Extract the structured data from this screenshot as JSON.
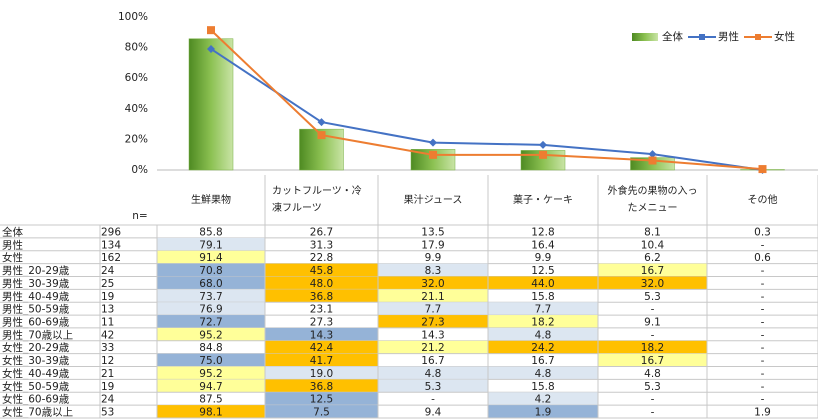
{
  "chart_data": {
    "type": "bar",
    "categories": [
      "生鮮果物",
      "カットフルーツ・冷凍フルーツ",
      "果汁ジュース",
      "菓子・ケーキ",
      "外食先の果物の入ったメニュー",
      "その他"
    ],
    "series": [
      {
        "name": "全体",
        "type": "bar",
        "color": "#77b043",
        "values": [
          85.8,
          26.7,
          13.5,
          12.8,
          8.1,
          0.3
        ]
      },
      {
        "name": "男性",
        "type": "line",
        "color": "#4472c4",
        "values": [
          79.1,
          31.3,
          17.9,
          16.4,
          10.4,
          0
        ]
      },
      {
        "name": "女性",
        "type": "line",
        "color": "#ed7d31",
        "values": [
          91.4,
          22.8,
          9.9,
          9.9,
          6.2,
          0.6
        ]
      }
    ],
    "ylim": [
      0,
      100
    ],
    "yticks": [
      {
        "value": 0,
        "label": "0%"
      },
      {
        "value": 20,
        "label": "20%"
      },
      {
        "value": 40,
        "label": "40%"
      },
      {
        "value": 60,
        "label": "60%"
      },
      {
        "value": 80,
        "label": "80%"
      },
      {
        "value": 100,
        "label": "100%"
      }
    ],
    "grid": false,
    "legend": "top-right"
  },
  "table": {
    "n_header": "n=",
    "rows": [
      {
        "label": "全体",
        "n": "296",
        "cells": [
          "85.8",
          "26.7",
          "13.5",
          "12.8",
          "8.1",
          "0.3"
        ],
        "colors": [
          null,
          null,
          null,
          null,
          null,
          null
        ]
      },
      {
        "label": "男性",
        "n": "134",
        "cells": [
          "79.1",
          "31.3",
          "17.9",
          "16.4",
          "10.4",
          "-"
        ],
        "colors": [
          "#dce6f1",
          null,
          null,
          null,
          null,
          null
        ]
      },
      {
        "label": "女性",
        "n": "162",
        "cells": [
          "91.4",
          "22.8",
          "9.9",
          "9.9",
          "6.2",
          "0.6"
        ],
        "colors": [
          "#ffff99",
          null,
          null,
          null,
          null,
          null
        ]
      },
      {
        "label": "男性_20-29歳",
        "n": "24",
        "cells": [
          "70.8",
          "45.8",
          "8.3",
          "12.5",
          "16.7",
          "-"
        ],
        "colors": [
          "#95b3d7",
          "#ffc000",
          "#dce6f1",
          null,
          "#ffff99",
          null
        ]
      },
      {
        "label": "男性_30-39歳",
        "n": "25",
        "cells": [
          "68.0",
          "48.0",
          "32.0",
          "44.0",
          "32.0",
          "-"
        ],
        "colors": [
          "#95b3d7",
          "#ffc000",
          "#ffc000",
          "#ffc000",
          "#ffc000",
          null
        ]
      },
      {
        "label": "男性_40-49歳",
        "n": "19",
        "cells": [
          "73.7",
          "36.8",
          "21.1",
          "15.8",
          "5.3",
          "-"
        ],
        "colors": [
          "#dce6f1",
          "#ffc000",
          "#ffff99",
          null,
          null,
          null
        ]
      },
      {
        "label": "男性_50-59歳",
        "n": "13",
        "cells": [
          "76.9",
          "23.1",
          "7.7",
          "7.7",
          "-",
          "-"
        ],
        "colors": [
          "#dce6f1",
          null,
          "#dce6f1",
          "#dce6f1",
          null,
          null
        ]
      },
      {
        "label": "男性_60-69歳",
        "n": "11",
        "cells": [
          "72.7",
          "27.3",
          "27.3",
          "18.2",
          "9.1",
          "-"
        ],
        "colors": [
          "#95b3d7",
          null,
          "#ffc000",
          "#ffff99",
          null,
          null
        ]
      },
      {
        "label": "男性_70歳以上",
        "n": "42",
        "cells": [
          "95.2",
          "14.3",
          "14.3",
          "4.8",
          "-",
          "-"
        ],
        "colors": [
          "#ffff99",
          "#95b3d7",
          null,
          "#dce6f1",
          null,
          null
        ]
      },
      {
        "label": "女性_20-29歳",
        "n": "33",
        "cells": [
          "84.8",
          "42.4",
          "21.2",
          "24.2",
          "18.2",
          "-"
        ],
        "colors": [
          null,
          "#ffc000",
          "#ffff99",
          "#ffc000",
          "#ffc000",
          null
        ]
      },
      {
        "label": "女性_30-39歳",
        "n": "12",
        "cells": [
          "75.0",
          "41.7",
          "16.7",
          "16.7",
          "16.7",
          "-"
        ],
        "colors": [
          "#95b3d7",
          "#ffc000",
          null,
          null,
          "#ffff99",
          null
        ]
      },
      {
        "label": "女性_40-49歳",
        "n": "21",
        "cells": [
          "95.2",
          "19.0",
          "4.8",
          "4.8",
          "4.8",
          "-"
        ],
        "colors": [
          "#ffff99",
          "#dce6f1",
          "#dce6f1",
          "#dce6f1",
          null,
          null
        ]
      },
      {
        "label": "女性_50-59歳",
        "n": "19",
        "cells": [
          "94.7",
          "36.8",
          "5.3",
          "15.8",
          "5.3",
          "-"
        ],
        "colors": [
          "#ffff99",
          "#ffc000",
          "#dce6f1",
          null,
          null,
          null
        ]
      },
      {
        "label": "女性_60-69歳",
        "n": "24",
        "cells": [
          "87.5",
          "12.5",
          "-",
          "4.2",
          "-",
          "-"
        ],
        "colors": [
          null,
          "#95b3d7",
          null,
          "#dce6f1",
          null,
          null
        ]
      },
      {
        "label": "女性_70歳以上",
        "n": "53",
        "cells": [
          "98.1",
          "7.5",
          "9.4",
          "1.9",
          "-",
          "1.9"
        ],
        "colors": [
          "#ffc000",
          "#95b3d7",
          null,
          "#95b3d7",
          null,
          null
        ]
      }
    ]
  }
}
